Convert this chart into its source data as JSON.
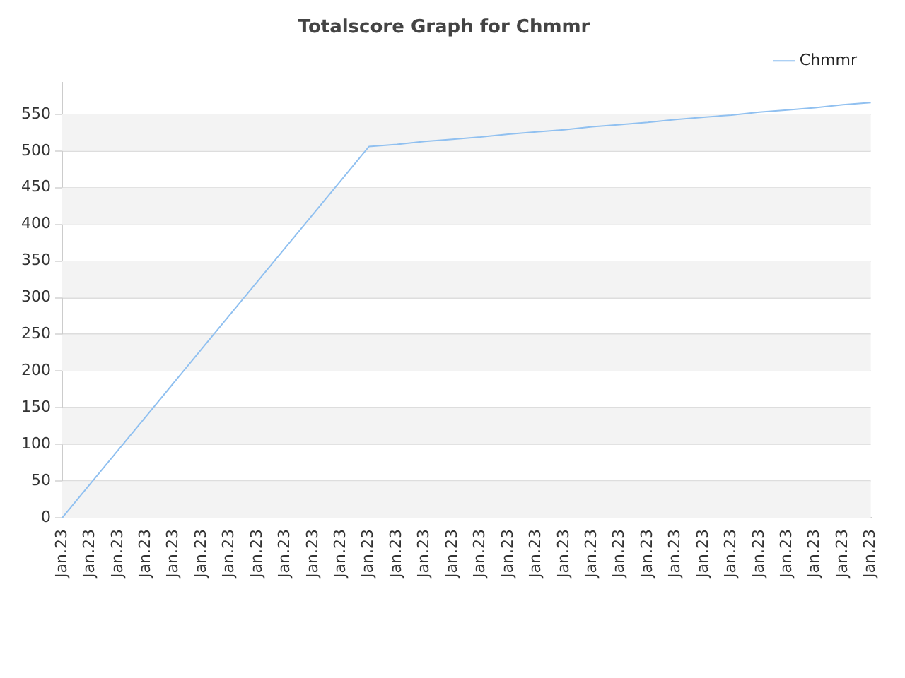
{
  "chart_data": {
    "type": "line",
    "title": "Totalscore Graph for Chmmr",
    "categories": [
      "Jan.23",
      "Jan.23",
      "Jan.23",
      "Jan.23",
      "Jan.23",
      "Jan.23",
      "Jan.23",
      "Jan.23",
      "Jan.23",
      "Jan.23",
      "Jan.23",
      "Jan.23",
      "Jan.23",
      "Jan.23",
      "Jan.23",
      "Jan.23",
      "Jan.23",
      "Jan.23",
      "Jan.23",
      "Jan.23",
      "Jan.23",
      "Jan.23",
      "Jan.23",
      "Jan.23",
      "Jan.23",
      "Jan.23",
      "Jan.23",
      "Jan.23",
      "Jan.23",
      "Jan.23"
    ],
    "series": [
      {
        "name": "Chmmr",
        "color": "#90c0f0",
        "values": [
          0,
          46,
          92,
          138,
          184,
          230,
          276,
          322,
          368,
          414,
          460,
          506,
          509,
          513,
          516,
          519,
          523,
          526,
          529,
          533,
          536,
          539,
          543,
          546,
          549,
          553,
          556,
          559,
          563,
          566
        ]
      }
    ],
    "ylim": [
      0,
      593
    ],
    "yticks": [
      0,
      50,
      100,
      150,
      200,
      250,
      300,
      350,
      400,
      450,
      500,
      550
    ],
    "grid": "y",
    "legend": "top right",
    "marker": "none",
    "line_style": "solid"
  }
}
